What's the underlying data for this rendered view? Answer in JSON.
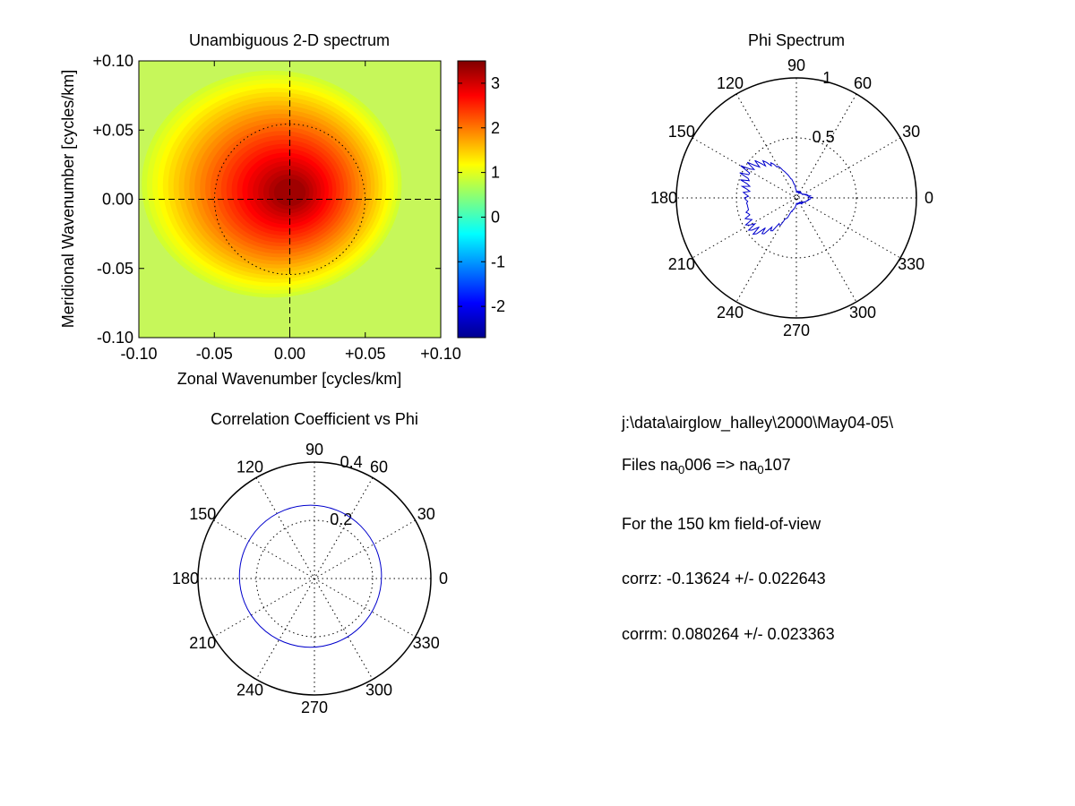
{
  "chart_data": [
    {
      "type": "heatmap",
      "title": "Unambiguous 2-D spectrum",
      "xlabel": "Zonal Wavenumber [cycles/km]",
      "ylabel": "Meridional Wavenumber [cycles/km]",
      "xlim": [
        -0.1,
        0.1
      ],
      "ylim": [
        -0.1,
        0.1
      ],
      "xticks": [
        "-0.10",
        "-0.05",
        "0.00",
        "+0.05",
        "+0.10"
      ],
      "yticks": [
        "+0.10",
        "+0.05",
        "0.00",
        "-0.05",
        "-0.10"
      ],
      "colorbar": {
        "range": [
          -2.7,
          3.5
        ],
        "ticks": [
          "3",
          "2",
          "1",
          "0",
          "-1",
          "-2"
        ],
        "tick_values": [
          3,
          2,
          1,
          0,
          -1,
          -2
        ],
        "colormap": "jet"
      },
      "peak": {
        "x": 0.0,
        "y": 0.005,
        "value": 3.3
      },
      "background_value": 0.9,
      "reference_circle_radius": 0.05,
      "crosshair": [
        0.0,
        0.0
      ],
      "grid": false
    },
    {
      "type": "polar",
      "title": "Phi Spectrum",
      "rlim": [
        0,
        1
      ],
      "radial_ticks": [
        "0.5",
        "1"
      ],
      "angle_labels": [
        "0",
        "30",
        "60",
        "90",
        "120",
        "150",
        "180",
        "210",
        "240",
        "270",
        "300",
        "330"
      ],
      "angles_deg": [
        0,
        30,
        60,
        90,
        120,
        150,
        180,
        210,
        240,
        270,
        300,
        330
      ],
      "series": [
        {
          "color": "#0000cc",
          "points": [
            [
              0,
              0.12
            ],
            [
              30,
              0.06
            ],
            [
              60,
              0.05
            ],
            [
              90,
              0.05
            ],
            [
              110,
              0.2
            ],
            [
              120,
              0.3
            ],
            [
              130,
              0.38
            ],
            [
              140,
              0.44
            ],
            [
              150,
              0.48
            ],
            [
              160,
              0.45
            ],
            [
              170,
              0.42
            ],
            [
              180,
              0.42
            ],
            [
              190,
              0.41
            ],
            [
              200,
              0.43
            ],
            [
              210,
              0.45
            ],
            [
              220,
              0.44
            ],
            [
              230,
              0.36
            ],
            [
              240,
              0.24
            ],
            [
              250,
              0.12
            ],
            [
              270,
              0.05
            ],
            [
              300,
              0.05
            ],
            [
              330,
              0.07
            ],
            [
              350,
              0.1
            ]
          ]
        }
      ]
    },
    {
      "type": "polar",
      "title": "Correlation Coefficient vs Phi",
      "rlim": [
        0,
        0.4
      ],
      "radial_ticks": [
        "0.2",
        "0.4"
      ],
      "angle_labels": [
        "0",
        "30",
        "60",
        "90",
        "120",
        "150",
        "180",
        "210",
        "240",
        "270",
        "300",
        "330"
      ],
      "angles_deg": [
        0,
        30,
        60,
        90,
        120,
        150,
        180,
        210,
        240,
        270,
        300,
        330
      ],
      "series": [
        {
          "color": "#0000cc",
          "shape": "circle",
          "center": [
            -0.0136,
            0.008
          ],
          "radius": 0.244
        }
      ]
    }
  ],
  "info": {
    "path": "j:\\data\\airglow_halley\\2000\\May04-05\\",
    "files_prefix": "Files  na",
    "files_sub1": "0",
    "files_mid": "006  =>  na",
    "files_sub2": "0",
    "files_end": "107",
    "fov": "For the  150 km field-of-view",
    "corrz": "corrz: -0.13624 +/- 0.022643",
    "corrm": "corrm: 0.080264 +/- 0.023363"
  }
}
